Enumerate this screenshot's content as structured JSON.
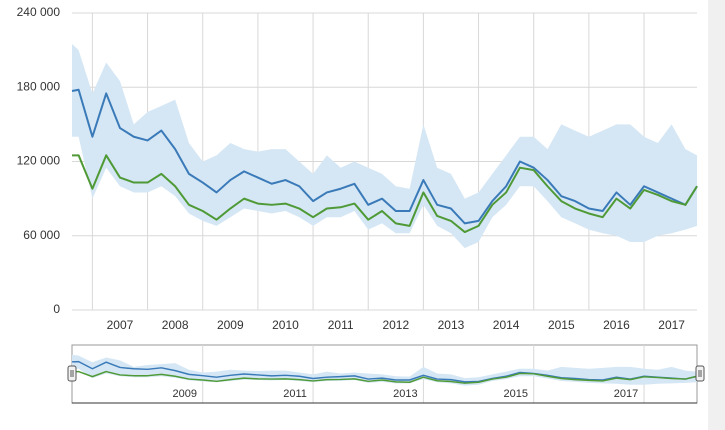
{
  "chart_data": {
    "type": "line",
    "x": [
      2006.63,
      2006.75,
      2007.0,
      2007.25,
      2007.5,
      2007.75,
      2008.0,
      2008.25,
      2008.5,
      2008.75,
      2009.0,
      2009.25,
      2009.5,
      2009.75,
      2010.0,
      2010.25,
      2010.5,
      2010.75,
      2011.0,
      2011.25,
      2011.5,
      2011.75,
      2012.0,
      2012.25,
      2012.5,
      2012.75,
      2013.0,
      2013.25,
      2013.5,
      2013.75,
      2014.0,
      2014.25,
      2014.5,
      2014.75,
      2015.0,
      2015.25,
      2015.5,
      2015.75,
      2016.0,
      2016.25,
      2016.5,
      2016.75,
      2017.0,
      2017.25,
      2017.5,
      2017.75,
      2017.96
    ],
    "band": {
      "color": "#d5e7f5",
      "low": [
        140000,
        140000,
        90000,
        115000,
        100000,
        95000,
        95000,
        100000,
        92000,
        78000,
        72000,
        68000,
        75000,
        82000,
        80000,
        78000,
        80000,
        75000,
        68000,
        75000,
        75000,
        80000,
        65000,
        70000,
        62000,
        62000,
        85000,
        68000,
        62000,
        50000,
        55000,
        75000,
        85000,
        100000,
        100000,
        88000,
        75000,
        70000,
        65000,
        62000,
        60000,
        55000,
        55000,
        60000,
        62000,
        65000,
        68000
      ],
      "high": [
        215000,
        210000,
        175000,
        200000,
        185000,
        150000,
        160000,
        165000,
        170000,
        135000,
        120000,
        125000,
        135000,
        130000,
        128000,
        130000,
        130000,
        120000,
        110000,
        125000,
        115000,
        120000,
        115000,
        110000,
        100000,
        98000,
        150000,
        115000,
        110000,
        90000,
        95000,
        110000,
        125000,
        140000,
        140000,
        130000,
        150000,
        145000,
        140000,
        145000,
        150000,
        150000,
        140000,
        135000,
        150000,
        130000,
        125000
      ]
    },
    "series": [
      {
        "color": "#3a7ab8",
        "values": [
          177000,
          178000,
          140000,
          175000,
          147000,
          140000,
          137000,
          145000,
          130000,
          110000,
          103000,
          95000,
          105000,
          112000,
          107000,
          102000,
          105000,
          100000,
          88000,
          95000,
          98000,
          102000,
          85000,
          90000,
          80000,
          80000,
          105000,
          85000,
          82000,
          70000,
          72000,
          88000,
          100000,
          120000,
          115000,
          105000,
          92000,
          88000,
          82000,
          80000,
          95000,
          85000,
          100000,
          95000,
          90000,
          85000,
          100000
        ]
      },
      {
        "color": "#4f9a36",
        "values": [
          125000,
          125000,
          98000,
          125000,
          107000,
          103000,
          103000,
          110000,
          100000,
          85000,
          80000,
          73000,
          82000,
          90000,
          86000,
          85000,
          86000,
          82000,
          75000,
          82000,
          83000,
          86000,
          73000,
          80000,
          70000,
          68000,
          95000,
          76000,
          72000,
          63000,
          68000,
          85000,
          95000,
          115000,
          113000,
          100000,
          88000,
          82000,
          78000,
          75000,
          90000,
          82000,
          97000,
          93000,
          88000,
          85000,
          100000
        ]
      }
    ],
    "xlim": [
      2006.63,
      2017.96
    ],
    "ylim": [
      0,
      240000
    ],
    "yticks": [
      0,
      {
        "value": 60000,
        "label": "60 000"
      },
      {
        "value": 120000,
        "label": "120 000"
      },
      {
        "value": 180000,
        "label": "180 000"
      },
      {
        "value": 240000,
        "label": "240 000"
      }
    ],
    "xticks": [
      {
        "value": 2007,
        "label": "2007"
      },
      {
        "value": 2008,
        "label": "2008"
      },
      {
        "value": 2009,
        "label": "2009"
      },
      {
        "value": 2010,
        "label": "2010"
      },
      {
        "value": 2011,
        "label": "2011"
      },
      {
        "value": 2012,
        "label": "2012"
      },
      {
        "value": 2013,
        "label": "2013"
      },
      {
        "value": 2014,
        "label": "2014"
      },
      {
        "value": 2015,
        "label": "2015"
      },
      {
        "value": 2016,
        "label": "2016"
      },
      {
        "value": 2017,
        "label": "2017"
      }
    ],
    "navigator_xticks": [
      {
        "value": 2009,
        "label": "2009"
      },
      {
        "value": 2011,
        "label": "2011"
      },
      {
        "value": 2013,
        "label": "2013"
      },
      {
        "value": 2015,
        "label": "2015"
      },
      {
        "value": 2017,
        "label": "2017"
      }
    ],
    "grid": true
  }
}
